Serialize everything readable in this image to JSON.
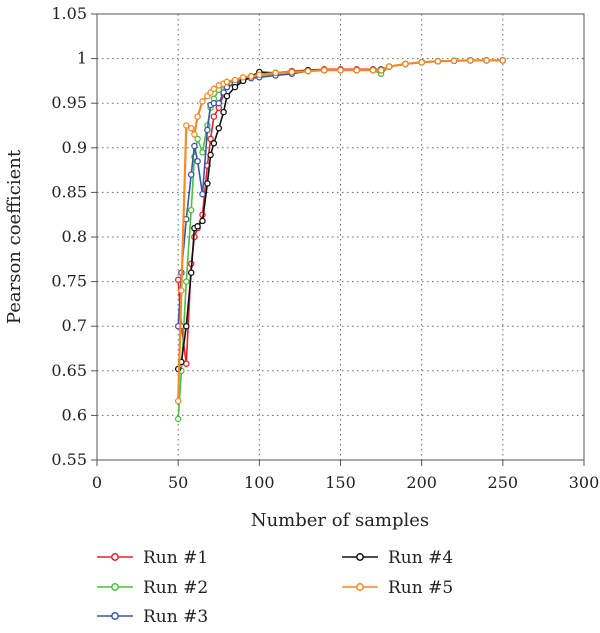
{
  "chart_data": {
    "type": "line",
    "xlabel": "Number of samples",
    "ylabel": "Pearson coefficient",
    "xlim": [
      0,
      300
    ],
    "ylim": [
      0.55,
      1.05
    ],
    "xticks": [
      0,
      50,
      100,
      150,
      200,
      250,
      300
    ],
    "yticks": [
      0.55,
      0.6,
      0.65,
      0.7,
      0.75,
      0.8,
      0.85,
      0.9,
      0.95,
      1,
      1.05
    ],
    "xtick_labels": [
      "0",
      "50",
      "100",
      "150",
      "200",
      "250",
      "300"
    ],
    "ytick_labels": [
      "0.55",
      "0.6",
      "0.65",
      "0.7",
      "0.75",
      "0.8",
      "0.85",
      "0.9",
      "0.95",
      "1",
      "1.05"
    ],
    "grid": "dotted",
    "legend_position": "bottom",
    "series": [
      {
        "name": "Run #1",
        "color": "#e8202a",
        "points": [
          [
            50,
            0.752
          ],
          [
            52,
            0.7
          ],
          [
            55,
            0.658
          ],
          [
            58,
            0.77
          ],
          [
            60,
            0.8
          ],
          [
            62,
            0.81
          ],
          [
            65,
            0.825
          ],
          [
            68,
            0.88
          ],
          [
            70,
            0.91
          ],
          [
            72,
            0.935
          ],
          [
            75,
            0.945
          ],
          [
            78,
            0.96
          ],
          [
            80,
            0.968
          ],
          [
            85,
            0.972
          ],
          [
            90,
            0.978
          ],
          [
            95,
            0.98
          ],
          [
            100,
            0.982
          ],
          [
            110,
            0.984
          ],
          [
            120,
            0.986
          ],
          [
            130,
            0.987
          ],
          [
            140,
            0.988
          ],
          [
            150,
            0.988
          ],
          [
            160,
            0.988
          ],
          [
            170,
            0.988
          ],
          [
            175,
            0.988
          ],
          [
            180,
            0.991
          ],
          [
            190,
            0.994
          ],
          [
            200,
            0.996
          ],
          [
            210,
            0.997
          ],
          [
            220,
            0.9975
          ],
          [
            230,
            0.998
          ],
          [
            240,
            0.998
          ],
          [
            250,
            0.998
          ]
        ]
      },
      {
        "name": "Run #2",
        "color": "#4dbf3f",
        "points": [
          [
            50,
            0.596
          ],
          [
            52,
            0.65
          ],
          [
            55,
            0.75
          ],
          [
            58,
            0.83
          ],
          [
            60,
            0.89
          ],
          [
            62,
            0.91
          ],
          [
            65,
            0.895
          ],
          [
            68,
            0.925
          ],
          [
            70,
            0.945
          ],
          [
            72,
            0.955
          ],
          [
            75,
            0.965
          ],
          [
            78,
            0.97
          ],
          [
            80,
            0.972
          ],
          [
            85,
            0.975
          ],
          [
            90,
            0.978
          ],
          [
            95,
            0.98
          ],
          [
            100,
            0.981
          ],
          [
            110,
            0.983
          ],
          [
            120,
            0.985
          ],
          [
            130,
            0.986
          ],
          [
            140,
            0.987
          ],
          [
            150,
            0.987
          ],
          [
            160,
            0.987
          ],
          [
            170,
            0.987
          ],
          [
            175,
            0.983
          ],
          [
            180,
            0.991
          ],
          [
            190,
            0.994
          ],
          [
            200,
            0.996
          ],
          [
            210,
            0.997
          ],
          [
            220,
            0.9975
          ],
          [
            230,
            0.998
          ],
          [
            240,
            0.998
          ],
          [
            250,
            0.998
          ]
        ]
      },
      {
        "name": "Run #3",
        "color": "#3a56a8",
        "points": [
          [
            50,
            0.7
          ],
          [
            52,
            0.76
          ],
          [
            55,
            0.82
          ],
          [
            58,
            0.87
          ],
          [
            60,
            0.902
          ],
          [
            62,
            0.885
          ],
          [
            65,
            0.848
          ],
          [
            68,
            0.92
          ],
          [
            70,
            0.948
          ],
          [
            72,
            0.95
          ],
          [
            75,
            0.95
          ],
          [
            78,
            0.962
          ],
          [
            80,
            0.968
          ],
          [
            85,
            0.972
          ],
          [
            90,
            0.976
          ],
          [
            95,
            0.978
          ],
          [
            100,
            0.979
          ],
          [
            110,
            0.981
          ],
          [
            120,
            0.983
          ],
          [
            130,
            0.986
          ],
          [
            140,
            0.987
          ],
          [
            150,
            0.987
          ],
          [
            160,
            0.987
          ],
          [
            170,
            0.987
          ],
          [
            175,
            0.988
          ],
          [
            180,
            0.991
          ],
          [
            190,
            0.994
          ],
          [
            200,
            0.996
          ],
          [
            210,
            0.997
          ],
          [
            220,
            0.9975
          ],
          [
            230,
            0.998
          ],
          [
            240,
            0.998
          ],
          [
            250,
            0.998
          ]
        ]
      },
      {
        "name": "Run #4",
        "color": "#111111",
        "points": [
          [
            50,
            0.652
          ],
          [
            52,
            0.66
          ],
          [
            55,
            0.7
          ],
          [
            58,
            0.76
          ],
          [
            60,
            0.81
          ],
          [
            62,
            0.812
          ],
          [
            65,
            0.818
          ],
          [
            68,
            0.86
          ],
          [
            70,
            0.892
          ],
          [
            72,
            0.905
          ],
          [
            75,
            0.922
          ],
          [
            78,
            0.94
          ],
          [
            80,
            0.958
          ],
          [
            85,
            0.968
          ],
          [
            90,
            0.975
          ],
          [
            95,
            0.98
          ],
          [
            100,
            0.985
          ],
          [
            110,
            0.984
          ],
          [
            120,
            0.985
          ],
          [
            130,
            0.987
          ],
          [
            140,
            0.987
          ],
          [
            150,
            0.987
          ],
          [
            160,
            0.987
          ],
          [
            170,
            0.987
          ],
          [
            175,
            0.987
          ],
          [
            180,
            0.991
          ],
          [
            190,
            0.994
          ],
          [
            200,
            0.996
          ],
          [
            210,
            0.997
          ],
          [
            220,
            0.9975
          ],
          [
            230,
            0.998
          ],
          [
            240,
            0.998
          ],
          [
            250,
            0.998
          ]
        ]
      },
      {
        "name": "Run #5",
        "color": "#f28c28",
        "points": [
          [
            50,
            0.616
          ],
          [
            52,
            0.74
          ],
          [
            55,
            0.925
          ],
          [
            58,
            0.922
          ],
          [
            60,
            0.915
          ],
          [
            62,
            0.935
          ],
          [
            65,
            0.952
          ],
          [
            68,
            0.958
          ],
          [
            70,
            0.962
          ],
          [
            72,
            0.966
          ],
          [
            75,
            0.97
          ],
          [
            78,
            0.972
          ],
          [
            80,
            0.974
          ],
          [
            85,
            0.976
          ],
          [
            90,
            0.979
          ],
          [
            95,
            0.98
          ],
          [
            100,
            0.982
          ],
          [
            110,
            0.984
          ],
          [
            120,
            0.985
          ],
          [
            130,
            0.986
          ],
          [
            140,
            0.987
          ],
          [
            150,
            0.987
          ],
          [
            160,
            0.987
          ],
          [
            170,
            0.987
          ],
          [
            175,
            0.987
          ],
          [
            180,
            0.991
          ],
          [
            190,
            0.994
          ],
          [
            200,
            0.996
          ],
          [
            210,
            0.997
          ],
          [
            220,
            0.9975
          ],
          [
            230,
            0.998
          ],
          [
            240,
            0.998
          ],
          [
            250,
            0.998
          ]
        ]
      }
    ]
  }
}
